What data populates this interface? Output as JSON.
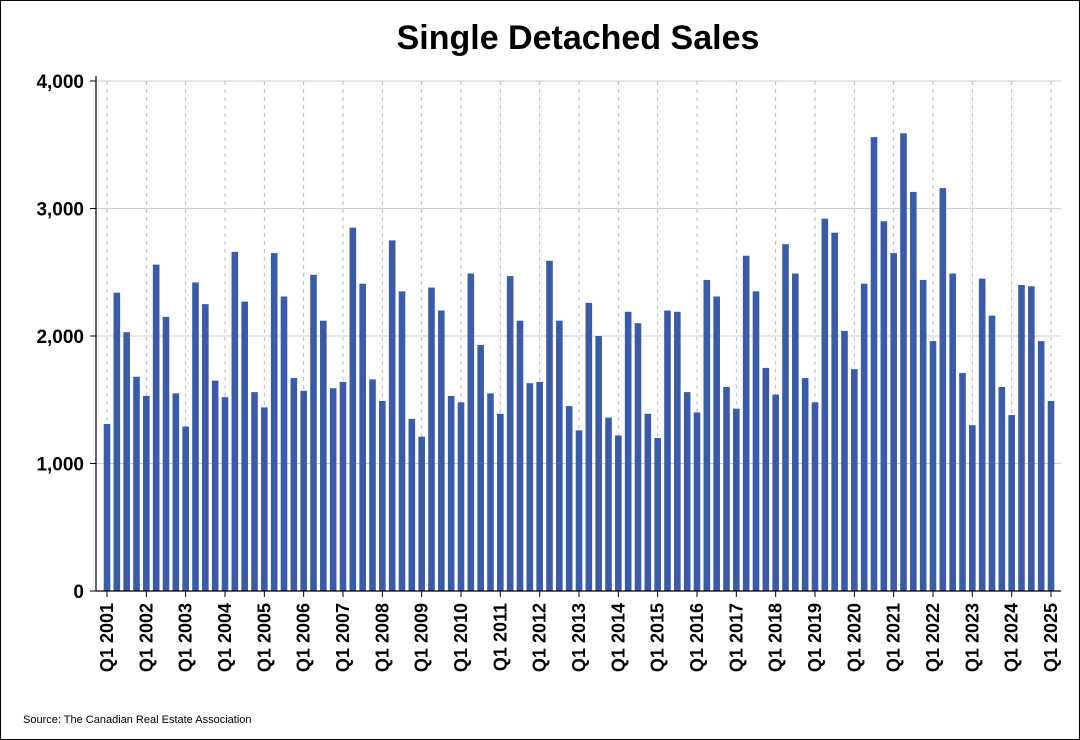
{
  "chart_data": {
    "type": "bar",
    "title": "Single Detached Sales",
    "xlabel": "",
    "ylabel": "",
    "ylim": [
      0,
      4000
    ],
    "yticks": [
      0,
      1000,
      2000,
      3000,
      4000
    ],
    "ytick_labels": [
      "0",
      "1,000",
      "2,000",
      "3,000",
      "4,000"
    ],
    "xtick_labels": [
      "Q1 2001",
      "Q1 2002",
      "Q1 2003",
      "Q1 2004",
      "Q1 2005",
      "Q1 2006",
      "Q1 2007",
      "Q1 2008",
      "Q1 2009",
      "Q1 2010",
      "Q1 2011",
      "Q1 2012",
      "Q1 2013",
      "Q1 2014",
      "Q1 2015",
      "Q1 2016",
      "Q1 2017",
      "Q1 2018",
      "Q1 2019",
      "Q1 2020",
      "Q1 2021",
      "Q1 2022",
      "Q1 2023",
      "Q1 2024",
      "Q1 2025"
    ],
    "grid": "horizontal solid, vertical dashed",
    "bar_color": "#3a5ca8",
    "categories": [
      "Q1 2001",
      "Q2 2001",
      "Q3 2001",
      "Q4 2001",
      "Q1 2002",
      "Q2 2002",
      "Q3 2002",
      "Q4 2002",
      "Q1 2003",
      "Q2 2003",
      "Q3 2003",
      "Q4 2003",
      "Q1 2004",
      "Q2 2004",
      "Q3 2004",
      "Q4 2004",
      "Q1 2005",
      "Q2 2005",
      "Q3 2005",
      "Q4 2005",
      "Q1 2006",
      "Q2 2006",
      "Q3 2006",
      "Q4 2006",
      "Q1 2007",
      "Q2 2007",
      "Q3 2007",
      "Q4 2007",
      "Q1 2008",
      "Q2 2008",
      "Q3 2008",
      "Q4 2008",
      "Q1 2009",
      "Q2 2009",
      "Q3 2009",
      "Q4 2009",
      "Q1 2010",
      "Q2 2010",
      "Q3 2010",
      "Q4 2010",
      "Q1 2011",
      "Q2 2011",
      "Q3 2011",
      "Q4 2011",
      "Q1 2012",
      "Q2 2012",
      "Q3 2012",
      "Q4 2012",
      "Q1 2013",
      "Q2 2013",
      "Q3 2013",
      "Q4 2013",
      "Q1 2014",
      "Q2 2014",
      "Q3 2014",
      "Q4 2014",
      "Q1 2015",
      "Q2 2015",
      "Q3 2015",
      "Q4 2015",
      "Q1 2016",
      "Q2 2016",
      "Q3 2016",
      "Q4 2016",
      "Q1 2017",
      "Q2 2017",
      "Q3 2017",
      "Q4 2017",
      "Q1 2018",
      "Q2 2018",
      "Q3 2018",
      "Q4 2018",
      "Q1 2019",
      "Q2 2019",
      "Q3 2019",
      "Q4 2019",
      "Q1 2020",
      "Q2 2020",
      "Q3 2020",
      "Q4 2020",
      "Q1 2021",
      "Q2 2021",
      "Q3 2021",
      "Q4 2021",
      "Q1 2022",
      "Q2 2022",
      "Q3 2022",
      "Q4 2022",
      "Q1 2023",
      "Q2 2023",
      "Q3 2023",
      "Q4 2023",
      "Q1 2024",
      "Q2 2024",
      "Q3 2024",
      "Q4 2024",
      "Q1 2025"
    ],
    "values": [
      1310,
      2340,
      2030,
      1680,
      1530,
      2560,
      2150,
      1550,
      1290,
      2420,
      2250,
      1650,
      1520,
      2660,
      2270,
      1560,
      1440,
      2650,
      2310,
      1670,
      1570,
      2480,
      2120,
      1590,
      1640,
      2850,
      2410,
      1660,
      1490,
      2750,
      2350,
      1350,
      1210,
      2380,
      2200,
      1530,
      1480,
      2490,
      1930,
      1550,
      1390,
      2470,
      2120,
      1630,
      1640,
      2590,
      2120,
      1450,
      1260,
      2260,
      2000,
      1360,
      1220,
      2190,
      2100,
      1390,
      1200,
      2200,
      2190,
      1560,
      1400,
      2440,
      2310,
      1600,
      1430,
      2630,
      2350,
      1750,
      1540,
      2720,
      2490,
      1670,
      1480,
      2920,
      2810,
      2040,
      1740,
      2410,
      3560,
      2900,
      2650,
      3590,
      3130,
      2440,
      1960,
      3160,
      2490,
      1710,
      1300,
      2450,
      2160,
      1600,
      1380,
      2400,
      2390,
      1960,
      1490
    ]
  },
  "source": "Source: The Canadian Real Estate Association"
}
